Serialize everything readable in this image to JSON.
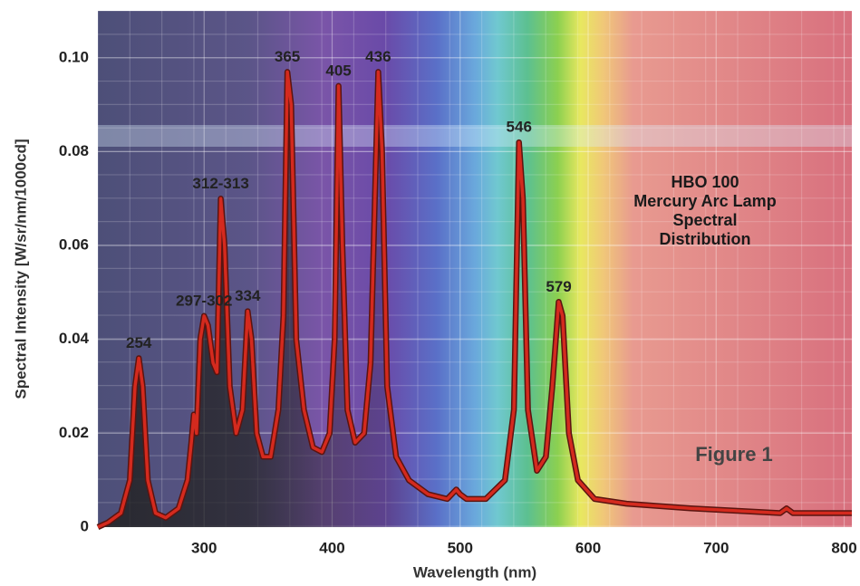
{
  "chart_data": {
    "type": "line",
    "xlabel": "Wavelength (nm)",
    "ylabel": "Spectral Intensity [W/sr/nm/1000cd]",
    "xlim": [
      217,
      806
    ],
    "ylim": [
      0,
      0.11
    ],
    "xticks": [
      300,
      400,
      500,
      600,
      700,
      800
    ],
    "yticks": [
      0,
      0.02,
      0.04,
      0.06,
      0.08,
      {
        "value": 0.1,
        "label": "0.10"
      }
    ],
    "grid": true,
    "color": "#d42a1e",
    "x": [
      217,
      225,
      235,
      242,
      246,
      249,
      252,
      256,
      262,
      270,
      280,
      287,
      290,
      292,
      294,
      297,
      300,
      303,
      307,
      310,
      313,
      316,
      320,
      325,
      330,
      334,
      337,
      341,
      346,
      352,
      358,
      362,
      365,
      368,
      372,
      378,
      385,
      392,
      398,
      402,
      405,
      408,
      412,
      418,
      425,
      430,
      436,
      439,
      443,
      450,
      460,
      475,
      490,
      497,
      500,
      505,
      520,
      535,
      542,
      546,
      549,
      553,
      560,
      567,
      572,
      577,
      580,
      585,
      592,
      605,
      630,
      680,
      750,
      755,
      760,
      806
    ],
    "values": [
      0,
      0.001,
      0.003,
      0.01,
      0.03,
      0.036,
      0.03,
      0.01,
      0.003,
      0.002,
      0.004,
      0.01,
      0.018,
      0.024,
      0.02,
      0.04,
      0.045,
      0.043,
      0.035,
      0.033,
      0.07,
      0.06,
      0.03,
      0.02,
      0.025,
      0.046,
      0.04,
      0.02,
      0.015,
      0.015,
      0.025,
      0.045,
      0.097,
      0.09,
      0.04,
      0.025,
      0.017,
      0.016,
      0.02,
      0.04,
      0.094,
      0.06,
      0.025,
      0.018,
      0.02,
      0.035,
      0.097,
      0.08,
      0.03,
      0.015,
      0.01,
      0.007,
      0.006,
      0.008,
      0.007,
      0.006,
      0.006,
      0.01,
      0.025,
      0.082,
      0.07,
      0.025,
      0.012,
      0.015,
      0.03,
      0.048,
      0.045,
      0.02,
      0.01,
      0.006,
      0.005,
      0.004,
      0.003,
      0.004,
      0.003,
      0.003
    ],
    "annotations": [
      {
        "text": "254",
        "x": 249,
        "y": 0.036
      },
      {
        "text": "297-302",
        "x": 300,
        "y": 0.045
      },
      {
        "text": "312-313",
        "x": 313,
        "y": 0.07
      },
      {
        "text": "334",
        "x": 334,
        "y": 0.046
      },
      {
        "text": "365",
        "x": 365,
        "y": 0.097
      },
      {
        "text": "405",
        "x": 405,
        "y": 0.094
      },
      {
        "text": "436",
        "x": 436,
        "y": 0.097
      },
      {
        "text": "546",
        "x": 546,
        "y": 0.082
      },
      {
        "text": "579",
        "x": 577,
        "y": 0.048
      }
    ],
    "note": [
      "HBO 100",
      "Mercury Arc Lamp",
      "Spectral",
      "Distribution"
    ],
    "figure_label": "Figure 1"
  }
}
